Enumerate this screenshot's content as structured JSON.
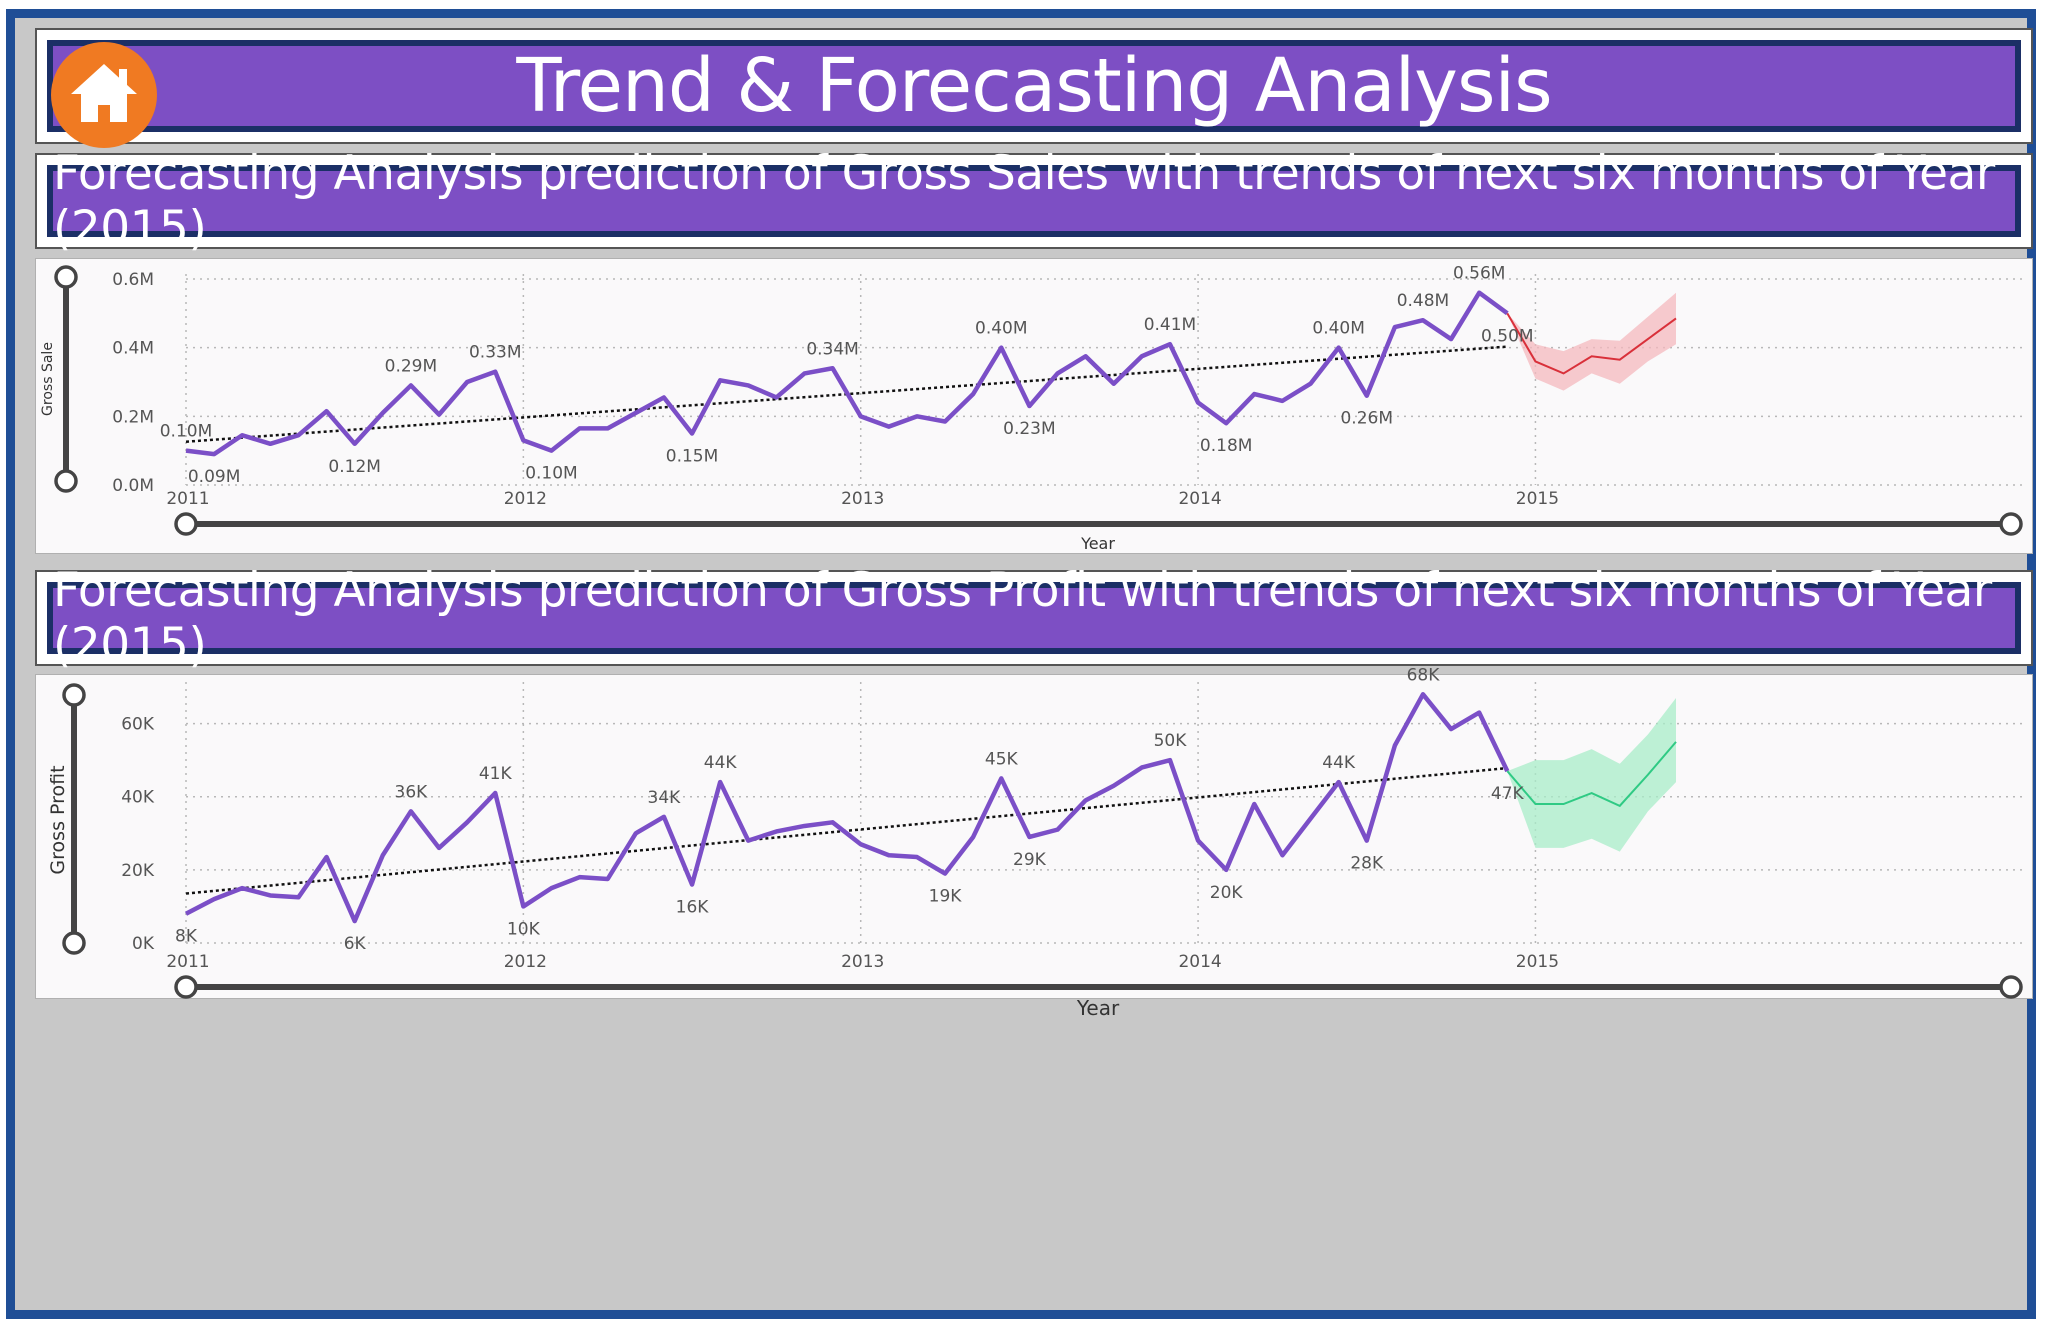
{
  "header": {
    "title": "Trend & Forecasting Analysis",
    "home_icon": "home-icon"
  },
  "colors": {
    "banner": "#7d4fc4",
    "banner_border": "#1b2f66",
    "frame": "#1f4e96",
    "home_button": "#f07a22",
    "actual_line": "#7b4fc7",
    "sales_forecast": "#d9303a",
    "sales_band": "#f4b8bd",
    "profit_forecast": "#2fca84",
    "profit_band": "#a8ecc8",
    "trend_line": "#111111"
  },
  "sections": {
    "sales_title": "Forecasting Analysis prediction of Gross Sales with trends of next six months of Year (2015)",
    "profit_title": "Forecasting Analysis prediction of Gross Profit with trends of next six months of Year (2015)"
  },
  "chart_data": [
    {
      "type": "line",
      "id": "gross-sales",
      "title": "",
      "xlabel": "Year",
      "ylabel": "Gross Sale",
      "x_ticks": [
        "2011",
        "2012",
        "2013",
        "2014",
        "2015"
      ],
      "y_ticks": [
        "0.0M",
        "0.2M",
        "0.4M",
        "0.6M"
      ],
      "ylim": [
        0,
        0.6
      ],
      "unit": "M",
      "grid": true,
      "trend_line": true,
      "series": [
        {
          "name": "Actual",
          "values": [
            0.1,
            0.09,
            0.145,
            0.12,
            0.145,
            0.215,
            0.12,
            0.21,
            0.29,
            0.205,
            0.3,
            0.33,
            0.13,
            0.1,
            0.165,
            0.165,
            0.21,
            0.255,
            0.15,
            0.305,
            0.29,
            0.255,
            0.325,
            0.34,
            0.2,
            0.17,
            0.2,
            0.185,
            0.265,
            0.4,
            0.23,
            0.325,
            0.375,
            0.295,
            0.375,
            0.41,
            0.24,
            0.18,
            0.265,
            0.245,
            0.295,
            0.4,
            0.26,
            0.46,
            0.48,
            0.425,
            0.56,
            0.5
          ],
          "labels": [
            [
              0,
              "0.10M"
            ],
            [
              1,
              "0.09M"
            ],
            [
              6,
              "0.12M"
            ],
            [
              8,
              "0.29M"
            ],
            [
              11,
              "0.33M"
            ],
            [
              13,
              "0.10M"
            ],
            [
              18,
              "0.15M"
            ],
            [
              23,
              "0.34M"
            ],
            [
              29,
              "0.40M"
            ],
            [
              30,
              "0.23M"
            ],
            [
              35,
              "0.41M"
            ],
            [
              37,
              "0.18M"
            ],
            [
              41,
              "0.40M"
            ],
            [
              42,
              "0.26M"
            ],
            [
              44,
              "0.48M"
            ],
            [
              46,
              "0.56M"
            ],
            [
              47,
              "0.50M"
            ]
          ]
        },
        {
          "name": "Forecast",
          "values": [
            0.36,
            0.325,
            0.375,
            0.365,
            0.425,
            0.485
          ],
          "upper": [
            0.41,
            0.39,
            0.425,
            0.42,
            0.49,
            0.56
          ],
          "lower": [
            0.31,
            0.275,
            0.325,
            0.295,
            0.36,
            0.41
          ]
        }
      ]
    },
    {
      "type": "line",
      "id": "gross-profit",
      "title": "",
      "xlabel": "Year",
      "ylabel": "Gross Profit",
      "x_ticks": [
        "2011",
        "2012",
        "2013",
        "2014",
        "2015"
      ],
      "y_ticks": [
        "0K",
        "20K",
        "40K",
        "60K"
      ],
      "ylim": [
        0,
        70
      ],
      "unit": "K",
      "grid": true,
      "trend_line": true,
      "series": [
        {
          "name": "Actual",
          "values": [
            8,
            12,
            15,
            13,
            12.5,
            23.5,
            6,
            24,
            36,
            26,
            33,
            41,
            10,
            15,
            18,
            17.5,
            30,
            34.5,
            16,
            44,
            28,
            30.5,
            32,
            33,
            27,
            24,
            23.5,
            19,
            29,
            45,
            29,
            31,
            39,
            43,
            48,
            50,
            28,
            20,
            38,
            24,
            34,
            44,
            28,
            54,
            68,
            58.5,
            63,
            47
          ],
          "labels": [
            [
              0,
              "8K"
            ],
            [
              6,
              "6K"
            ],
            [
              8,
              "36K"
            ],
            [
              11,
              "41K"
            ],
            [
              12,
              "10K"
            ],
            [
              17,
              "34K"
            ],
            [
              18,
              "16K"
            ],
            [
              19,
              "44K"
            ],
            [
              27,
              "19K"
            ],
            [
              29,
              "45K"
            ],
            [
              30,
              "29K"
            ],
            [
              35,
              "50K"
            ],
            [
              37,
              "20K"
            ],
            [
              41,
              "44K"
            ],
            [
              42,
              "28K"
            ],
            [
              44,
              "68K"
            ],
            [
              47,
              "47K"
            ]
          ]
        },
        {
          "name": "Forecast",
          "values": [
            38,
            38,
            41,
            37.5,
            46,
            55
          ],
          "upper": [
            50,
            50,
            53,
            49,
            57,
            67
          ],
          "lower": [
            26,
            26,
            28.5,
            25,
            36,
            44
          ]
        }
      ]
    }
  ]
}
